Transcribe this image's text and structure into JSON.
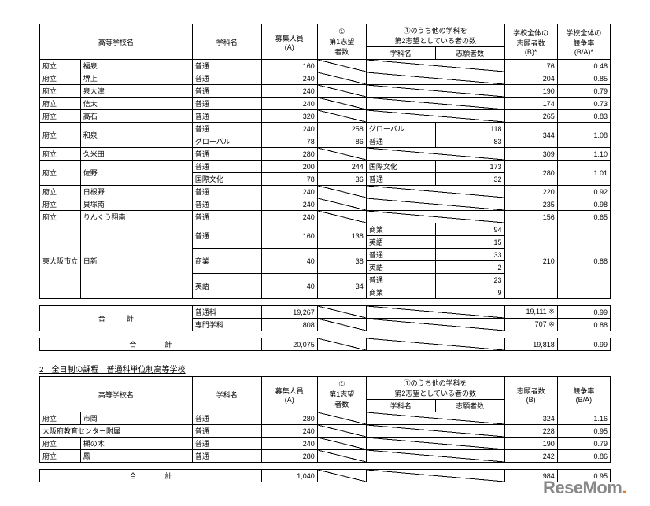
{
  "table1": {
    "headers": {
      "school": "高等学校名",
      "dept": "学科名",
      "capacity": "募集人員\n(A)",
      "first": "①\n第1志望\n者数",
      "second_group": "①のうち他の学科を\n第2志望としている者の数",
      "second_dept": "学科名",
      "second_count": "志願者数",
      "applicants": "学校全体の\n志願者数\n(B)*",
      "rate": "学校全体の\n競争率\n(B/A)*"
    },
    "rows": [
      {
        "type": "府立",
        "name": "福泉",
        "dept": "普通",
        "cap": "160",
        "first": "",
        "sub": "",
        "subn": "",
        "app": "76",
        "rate": "0.48",
        "diag": [
          "first",
          "sub",
          "subn"
        ]
      },
      {
        "type": "府立",
        "name": "堺上",
        "dept": "普通",
        "cap": "240",
        "first": "",
        "sub": "",
        "subn": "",
        "app": "204",
        "rate": "0.85",
        "diag": [
          "first",
          "sub",
          "subn"
        ]
      },
      {
        "type": "府立",
        "name": "泉大津",
        "dept": "普通",
        "cap": "240",
        "first": "",
        "sub": "",
        "subn": "",
        "app": "190",
        "rate": "0.79",
        "diag": [
          "first",
          "sub",
          "subn"
        ]
      },
      {
        "type": "府立",
        "name": "信太",
        "dept": "普通",
        "cap": "240",
        "first": "",
        "sub": "",
        "subn": "",
        "app": "174",
        "rate": "0.73",
        "diag": [
          "first",
          "sub",
          "subn"
        ]
      },
      {
        "type": "府立",
        "name": "高石",
        "dept": "普通",
        "cap": "320",
        "first": "",
        "sub": "",
        "subn": "",
        "app": "265",
        "rate": "0.83",
        "diag": [
          "first",
          "sub",
          "subn"
        ]
      }
    ],
    "izumi": {
      "type": "府立",
      "name": "和泉",
      "r1": {
        "dept": "普通",
        "cap": "240",
        "first": "258",
        "sub": "グローバル",
        "subn": "118"
      },
      "r2": {
        "dept": "グローバル",
        "cap": "78",
        "first": "86",
        "sub": "普通",
        "subn": "83"
      },
      "app": "344",
      "rate": "1.08"
    },
    "kumeda": {
      "type": "府立",
      "name": "久米田",
      "dept": "普通",
      "cap": "280",
      "app": "309",
      "rate": "1.10"
    },
    "sano": {
      "type": "府立",
      "name": "佐野",
      "r1": {
        "dept": "普通",
        "cap": "200",
        "first": "244",
        "sub": "国際文化",
        "subn": "173"
      },
      "r2": {
        "dept": "国際文化",
        "cap": "78",
        "first": "36",
        "sub": "普通",
        "subn": "32"
      },
      "app": "280",
      "rate": "1.01"
    },
    "simple2": [
      {
        "type": "府立",
        "name": "日根野",
        "dept": "普通",
        "cap": "240",
        "app": "220",
        "rate": "0.92"
      },
      {
        "type": "府立",
        "name": "貝塚南",
        "dept": "普通",
        "cap": "240",
        "app": "235",
        "rate": "0.98"
      },
      {
        "type": "府立",
        "name": "りんくう翔南",
        "dept": "普通",
        "cap": "240",
        "app": "156",
        "rate": "0.65"
      }
    ],
    "nisshin": {
      "type": "東大阪市立",
      "name": "日新",
      "app": "210",
      "rate": "0.88",
      "r1": {
        "dept": "普通",
        "cap": "160",
        "first": "138",
        "s1": {
          "sub": "商業",
          "subn": "94"
        },
        "s2": {
          "sub": "英語",
          "subn": "15"
        }
      },
      "r2": {
        "dept": "商業",
        "cap": "40",
        "first": "38",
        "s1": {
          "sub": "普通",
          "subn": "33"
        },
        "s2": {
          "sub": "英語",
          "subn": "2"
        }
      },
      "r3": {
        "dept": "英語",
        "cap": "40",
        "first": "34",
        "s1": {
          "sub": "普通",
          "subn": "23"
        },
        "s2": {
          "sub": "商業",
          "subn": "9"
        }
      }
    },
    "subtotal": {
      "label": "合　　　計",
      "r1": {
        "dept": "普通科",
        "cap": "19,267",
        "app": "19,111",
        "mark": "※",
        "rate": "0.99"
      },
      "r2": {
        "dept": "専門学科",
        "cap": "808",
        "app": "707",
        "mark": "※",
        "rate": "0.88"
      }
    },
    "total": {
      "label": "合　　　　計",
      "cap": "20,075",
      "app": "19,818",
      "rate": "0.99"
    }
  },
  "section2_title": "2　全日制の課程　普通科単位制高等学校",
  "table2": {
    "headers": {
      "school": "高等学校名",
      "dept": "学科名",
      "capacity": "募集人員\n(A)",
      "first": "①\n第1志望\n者数",
      "second_group": "①のうち他の学科を\n第2志望としている者の数",
      "second_dept": "学科名",
      "second_count": "志願者数",
      "applicants": "志願者数\n(B)",
      "rate": "競争率\n(B/A)"
    },
    "rows": [
      {
        "type": "府立",
        "name": "市岡",
        "dept": "普通",
        "cap": "280",
        "app": "324",
        "rate": "1.16"
      },
      {
        "type": "",
        "name": "大阪府教育センター附属",
        "dept": "普通",
        "cap": "240",
        "app": "228",
        "rate": "0.95",
        "merged": true
      },
      {
        "type": "府立",
        "name": "槻の木",
        "dept": "普通",
        "cap": "240",
        "app": "190",
        "rate": "0.79"
      },
      {
        "type": "府立",
        "name": "鳳",
        "dept": "普通",
        "cap": "280",
        "app": "242",
        "rate": "0.86"
      }
    ],
    "total": {
      "label": "合　　　　計",
      "cap": "1,040",
      "app": "984",
      "rate": "0.95"
    }
  },
  "watermark": "ReseMom"
}
